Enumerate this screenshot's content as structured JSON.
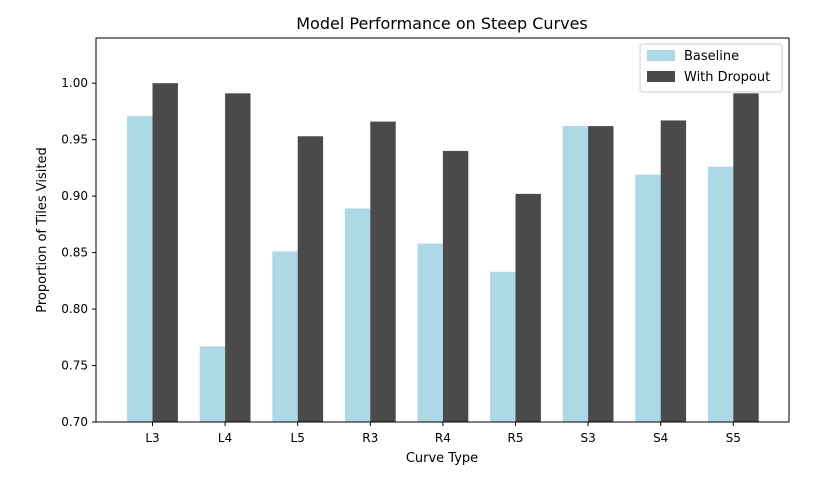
{
  "chart_data": {
    "type": "bar",
    "title": "Model Performance on Steep Curves",
    "xlabel": "Curve Type",
    "ylabel": "Proportion of Tiles Visited",
    "ylim": [
      0.7,
      1.04
    ],
    "yticks": [
      "0.70",
      "0.75",
      "0.80",
      "0.85",
      "0.90",
      "0.95",
      "1.00"
    ],
    "categories": [
      "L3",
      "L4",
      "L5",
      "R3",
      "R4",
      "R5",
      "S3",
      "S4",
      "S5"
    ],
    "series": [
      {
        "name": "Baseline",
        "color": "#add8e6",
        "values": [
          0.971,
          0.767,
          0.851,
          0.889,
          0.858,
          0.833,
          0.962,
          0.919,
          0.926
        ]
      },
      {
        "name": "With Dropout",
        "color": "#4a4a4a",
        "values": [
          1.0,
          0.991,
          0.953,
          0.966,
          0.94,
          0.902,
          0.962,
          0.967,
          0.991
        ]
      }
    ],
    "grid": false,
    "legend_position": "top-right"
  }
}
